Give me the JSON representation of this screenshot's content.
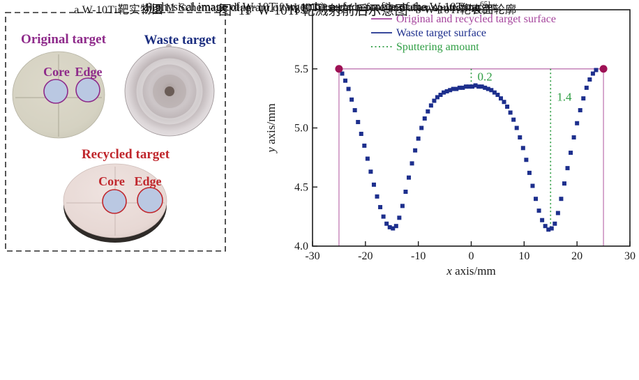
{
  "panel_a": {
    "caption": "a W-10Ti靶实物图",
    "original_label": "Original target",
    "waste_label": "Waste target",
    "recycled_label": "Recycled target",
    "core_top": "Core",
    "edge_top": "Edge",
    "core_bottom": "Core",
    "edge_bottom": "Edge"
  },
  "panel_b": {
    "caption": "b W-10Ti靶表面轮廓"
  },
  "figure_caption": {
    "zh_main": "图  11  W-10Ti 靶溅射前后示意图",
    "zh_sup": "[65]",
    "en1_main": "Fig.11 Schematic diagram of W-10Ti target before and after sputtering",
    "en1_sup": "65]",
    "en1_tail": ":",
    "en2": "a) physical image of W-10Ti target; b) surface profile of the W-10Ti target"
  },
  "colors": {
    "purple_text": "#8e2a8a",
    "navy_text": "#1c2e80",
    "red_text": "#c0272d",
    "axis": "#1a1a1a"
  },
  "chart_data": {
    "type": "scatter",
    "title": "",
    "xlabel": "x axis/mm",
    "ylabel": "y axis/mm",
    "xlim": [
      -30,
      30
    ],
    "ylim": [
      4.0,
      6.0
    ],
    "xticks": [
      -30,
      -20,
      -10,
      0,
      10,
      20,
      30
    ],
    "yticks": [
      4.0,
      4.5,
      5.0,
      5.5,
      6.0
    ],
    "grid": false,
    "legend_position": "top-inside",
    "legend": [
      {
        "label": "Original and recycled target surface",
        "color": "#a6459d",
        "style": "solid"
      },
      {
        "label": "Waste target surface",
        "color": "#1d2f8d",
        "style": "solid"
      },
      {
        "label": "Sputtering amount",
        "color": "#2f9e44",
        "style": "dotted"
      }
    ],
    "original_surface": {
      "y": 5.5,
      "x_start": -25,
      "x_end": 25,
      "line_color": "#c583b9",
      "endpoint_color": "#9e1155",
      "endpoint_radius_px": 5.5
    },
    "annotations": [
      {
        "x": 0,
        "from_y": 5.5,
        "to_y": 5.34,
        "label": "0.2",
        "label_y": 5.4
      },
      {
        "x": 15,
        "from_y": 5.5,
        "to_y": 4.15,
        "label": "1.4",
        "label_y": 5.23
      }
    ],
    "series": [
      {
        "name": "Waste target surface",
        "marker": "square",
        "color": "#1d2f8d",
        "points": [
          [
            -25.0,
            5.49
          ],
          [
            -24.4,
            5.46
          ],
          [
            -23.8,
            5.4
          ],
          [
            -23.2,
            5.33
          ],
          [
            -22.6,
            5.24
          ],
          [
            -22.0,
            5.15
          ],
          [
            -21.4,
            5.05
          ],
          [
            -20.8,
            4.95
          ],
          [
            -20.2,
            4.85
          ],
          [
            -19.6,
            4.74
          ],
          [
            -19.0,
            4.63
          ],
          [
            -18.4,
            4.52
          ],
          [
            -17.8,
            4.42
          ],
          [
            -17.2,
            4.33
          ],
          [
            -16.6,
            4.25
          ],
          [
            -16.0,
            4.19
          ],
          [
            -15.4,
            4.16
          ],
          [
            -14.8,
            4.15
          ],
          [
            -14.2,
            4.17
          ],
          [
            -13.6,
            4.24
          ],
          [
            -13.0,
            4.34
          ],
          [
            -12.4,
            4.46
          ],
          [
            -11.8,
            4.58
          ],
          [
            -11.2,
            4.7
          ],
          [
            -10.6,
            4.81
          ],
          [
            -10.0,
            4.91
          ],
          [
            -9.4,
            5.0
          ],
          [
            -8.8,
            5.08
          ],
          [
            -8.2,
            5.14
          ],
          [
            -7.6,
            5.19
          ],
          [
            -7.0,
            5.23
          ],
          [
            -6.4,
            5.26
          ],
          [
            -5.8,
            5.28
          ],
          [
            -5.2,
            5.3
          ],
          [
            -4.6,
            5.31
          ],
          [
            -4.0,
            5.32
          ],
          [
            -3.4,
            5.33
          ],
          [
            -2.8,
            5.33
          ],
          [
            -2.2,
            5.34
          ],
          [
            -1.6,
            5.34
          ],
          [
            -1.0,
            5.35
          ],
          [
            -0.4,
            5.35
          ],
          [
            0.2,
            5.35
          ],
          [
            0.8,
            5.36
          ],
          [
            1.4,
            5.35
          ],
          [
            2.0,
            5.35
          ],
          [
            2.6,
            5.34
          ],
          [
            3.2,
            5.33
          ],
          [
            3.8,
            5.32
          ],
          [
            4.4,
            5.3
          ],
          [
            5.0,
            5.28
          ],
          [
            5.6,
            5.25
          ],
          [
            6.2,
            5.22
          ],
          [
            6.8,
            5.18
          ],
          [
            7.4,
            5.13
          ],
          [
            8.0,
            5.07
          ],
          [
            8.6,
            5.0
          ],
          [
            9.2,
            4.92
          ],
          [
            9.8,
            4.83
          ],
          [
            10.4,
            4.73
          ],
          [
            11.0,
            4.62
          ],
          [
            11.6,
            4.51
          ],
          [
            12.2,
            4.4
          ],
          [
            12.8,
            4.3
          ],
          [
            13.4,
            4.22
          ],
          [
            14.0,
            4.17
          ],
          [
            14.6,
            4.14
          ],
          [
            15.2,
            4.15
          ],
          [
            15.8,
            4.19
          ],
          [
            16.4,
            4.28
          ],
          [
            17.0,
            4.4
          ],
          [
            17.6,
            4.53
          ],
          [
            18.2,
            4.66
          ],
          [
            18.8,
            4.79
          ],
          [
            19.4,
            4.92
          ],
          [
            20.0,
            5.04
          ],
          [
            20.6,
            5.15
          ],
          [
            21.2,
            5.25
          ],
          [
            21.8,
            5.34
          ],
          [
            22.4,
            5.41
          ],
          [
            23.0,
            5.46
          ],
          [
            23.6,
            5.49
          ]
        ]
      }
    ]
  }
}
